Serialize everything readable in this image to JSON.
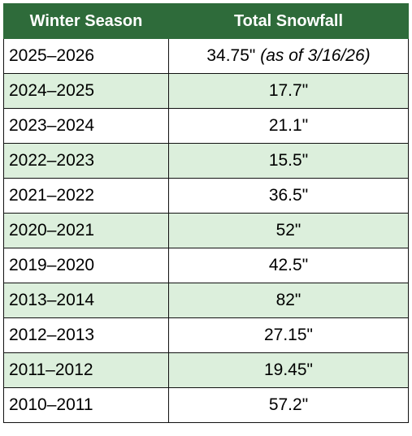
{
  "header": {
    "season_label": "Winter Season",
    "snowfall_label": "Total Snowfall"
  },
  "rows": [
    {
      "season": "2025–2026",
      "snowfall": "34.75\"",
      "note": "(as of 3/16/26)"
    },
    {
      "season": "2024–2025",
      "snowfall": "17.7\""
    },
    {
      "season": "2023–2024",
      "snowfall": "21.1\""
    },
    {
      "season": "2022–2023",
      "snowfall": "15.5\""
    },
    {
      "season": "2021–2022",
      "snowfall": "36.5\""
    },
    {
      "season": "2020–2021",
      "snowfall": "52\""
    },
    {
      "season": "2019–2020",
      "snowfall": "42.5\""
    },
    {
      "season": "2013–2014",
      "snowfall": "82\""
    },
    {
      "season": "2012–2013",
      "snowfall": "27.15\""
    },
    {
      "season": "2011–2012",
      "snowfall": "19.45\""
    },
    {
      "season": "2010–2011",
      "snowfall": "57.2\""
    }
  ],
  "colors": {
    "header_bg": "#2e6b3a",
    "header_text": "#ffffff",
    "band": "#dcefdc"
  }
}
